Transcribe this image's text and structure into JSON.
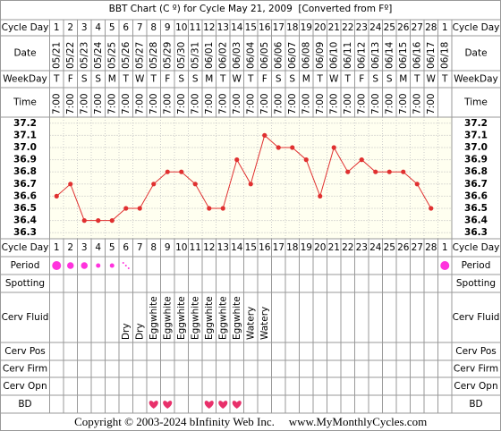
{
  "chart_data": {
    "type": "line",
    "title": "BBT Chart (C º) for Cycle May 21, 2009  [Converted from Fº]",
    "row_labels": {
      "cycle_day": "Cycle Day",
      "date": "Date",
      "weekday": "WeekDay",
      "time": "Time",
      "period": "Period",
      "spotting": "Spotting",
      "cerv_fluid": "Cerv Fluid",
      "cerv_pos": "Cerv Pos",
      "cerv_firm": "Cerv Firm",
      "cerv_opn": "Cerv Opn",
      "bd": "BD"
    },
    "cycle_days": [
      1,
      2,
      3,
      4,
      5,
      6,
      7,
      8,
      9,
      10,
      11,
      12,
      13,
      14,
      15,
      16,
      17,
      18,
      19,
      20,
      21,
      22,
      23,
      24,
      25,
      26,
      27,
      28,
      1
    ],
    "dates": [
      "05/21",
      "05/22",
      "05/23",
      "05/24",
      "05/25",
      "05/26",
      "05/27",
      "05/28",
      "05/29",
      "05/30",
      "05/31",
      "06/01",
      "06/02",
      "06/03",
      "06/04",
      "06/05",
      "06/06",
      "06/07",
      "06/08",
      "06/09",
      "06/10",
      "06/11",
      "06/12",
      "06/13",
      "06/14",
      "06/15",
      "06/16",
      "06/17",
      "06/18"
    ],
    "weekdays": [
      "T",
      "F",
      "S",
      "S",
      "M",
      "T",
      "W",
      "T",
      "F",
      "S",
      "S",
      "M",
      "T",
      "W",
      "T",
      "F",
      "S",
      "S",
      "M",
      "T",
      "W",
      "T",
      "F",
      "S",
      "S",
      "M",
      "T",
      "W",
      "T"
    ],
    "times": [
      "7:00",
      "7:00",
      "7:00",
      "7:00",
      "7:00",
      "7:00",
      "7:00",
      "7:00",
      "7:00",
      "7:00",
      "7:00",
      "7:00",
      "7:00",
      "7:00",
      "7:00",
      "7:00",
      "7:00",
      "7:00",
      "7:00",
      "7:00",
      "7:00",
      "7:00",
      "7:00",
      "7:00",
      "7:00",
      "7:00",
      "7:00",
      "7:00",
      null
    ],
    "values": [
      36.6,
      36.7,
      36.4,
      36.4,
      36.4,
      36.5,
      36.5,
      36.7,
      36.8,
      36.8,
      36.7,
      36.5,
      36.5,
      36.9,
      36.7,
      37.1,
      37.0,
      37.0,
      36.9,
      36.6,
      37.0,
      36.8,
      36.9,
      36.8,
      36.8,
      36.8,
      36.7,
      36.5,
      null
    ],
    "color": "#e03030",
    "ylim": [
      36.25,
      37.25
    ],
    "yticks": [
      36.3,
      36.4,
      36.5,
      36.6,
      36.7,
      36.8,
      36.9,
      {
        "value": 37,
        "label": "37.0"
      },
      37.1,
      37.2
    ],
    "grid": true,
    "period": [
      4,
      3,
      3,
      2,
      2,
      1,
      null,
      null,
      null,
      null,
      null,
      null,
      null,
      null,
      null,
      null,
      null,
      null,
      null,
      null,
      null,
      null,
      null,
      null,
      null,
      null,
      null,
      null,
      4
    ],
    "period_color": "#ff33dd",
    "cerv_fluid": [
      null,
      null,
      null,
      null,
      null,
      "Dry",
      "Dry",
      "Eggwhite",
      "Eggwhite",
      "Eggwhite",
      "Eggwhite",
      "Eggwhite",
      "Eggwhite",
      "Eggwhite",
      "Watery",
      "Watery",
      null,
      null,
      null,
      null,
      null,
      null,
      null,
      null,
      null,
      null,
      null,
      null,
      null
    ],
    "bd": [
      null,
      null,
      null,
      null,
      null,
      null,
      null,
      true,
      true,
      null,
      null,
      true,
      true,
      true,
      null,
      null,
      null,
      null,
      null,
      null,
      null,
      null,
      null,
      null,
      null,
      null,
      null,
      null,
      null
    ],
    "bd_color": "#e8306a",
    "footer": {
      "copyright": "Copyright © 2003-2024 bInfinity Web Inc.",
      "site": "www.MyMonthlyCycles.com"
    }
  }
}
